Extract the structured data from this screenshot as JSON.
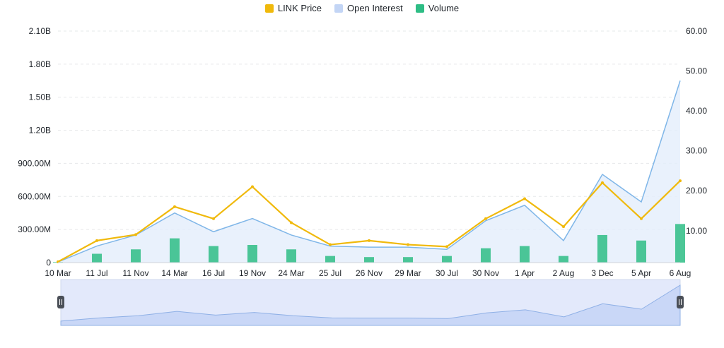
{
  "legend": [
    {
      "label": "LINK Price",
      "color": "#f0b90b"
    },
    {
      "label": "Open Interest",
      "color": "#c3d5f5"
    },
    {
      "label": "Volume",
      "color": "#2ebd85"
    }
  ],
  "chart_data": {
    "type": "area",
    "title": "",
    "categories": [
      "10 Mar",
      "11 Jul",
      "11 Nov",
      "14 Mar",
      "16 Jul",
      "19 Nov",
      "24 Mar",
      "25 Jul",
      "26 Nov",
      "29 Mar",
      "30 Jul",
      "30 Nov",
      "1 Apr",
      "2 Aug",
      "3 Dec",
      "5 Apr",
      "6 Aug"
    ],
    "y_left": {
      "ticks": [
        "0",
        "300.00M",
        "600.00M",
        "900.00M",
        "1.20B",
        "1.50B",
        "1.80B",
        "2.10B"
      ],
      "range": [
        0,
        2100000000
      ]
    },
    "y_right": {
      "ticks": [
        "10.00",
        "20.00",
        "30.00",
        "40.00",
        "50.00",
        "60.00"
      ],
      "range": [
        2,
        60
      ]
    },
    "grid": true,
    "legend_position": "top-center",
    "series": [
      {
        "name": "LINK Price",
        "axis": "right",
        "type": "line",
        "values": [
          2.2,
          7.5,
          9.0,
          16.0,
          13.0,
          21.0,
          12.0,
          6.5,
          7.5,
          6.5,
          6.0,
          13.0,
          18.0,
          11.0,
          22.0,
          13.0,
          22.5
        ]
      },
      {
        "name": "Open Interest",
        "axis": "left",
        "type": "area",
        "values": [
          5000000,
          150000000,
          250000000,
          450000000,
          280000000,
          400000000,
          250000000,
          150000000,
          140000000,
          140000000,
          120000000,
          380000000,
          520000000,
          200000000,
          800000000,
          550000000,
          1650000000
        ]
      },
      {
        "name": "Volume",
        "axis": "left",
        "type": "bar",
        "values": [
          5000000,
          80000000,
          120000000,
          220000000,
          150000000,
          160000000,
          120000000,
          60000000,
          50000000,
          50000000,
          60000000,
          130000000,
          150000000,
          60000000,
          250000000,
          200000000,
          350000000
        ]
      }
    ]
  }
}
